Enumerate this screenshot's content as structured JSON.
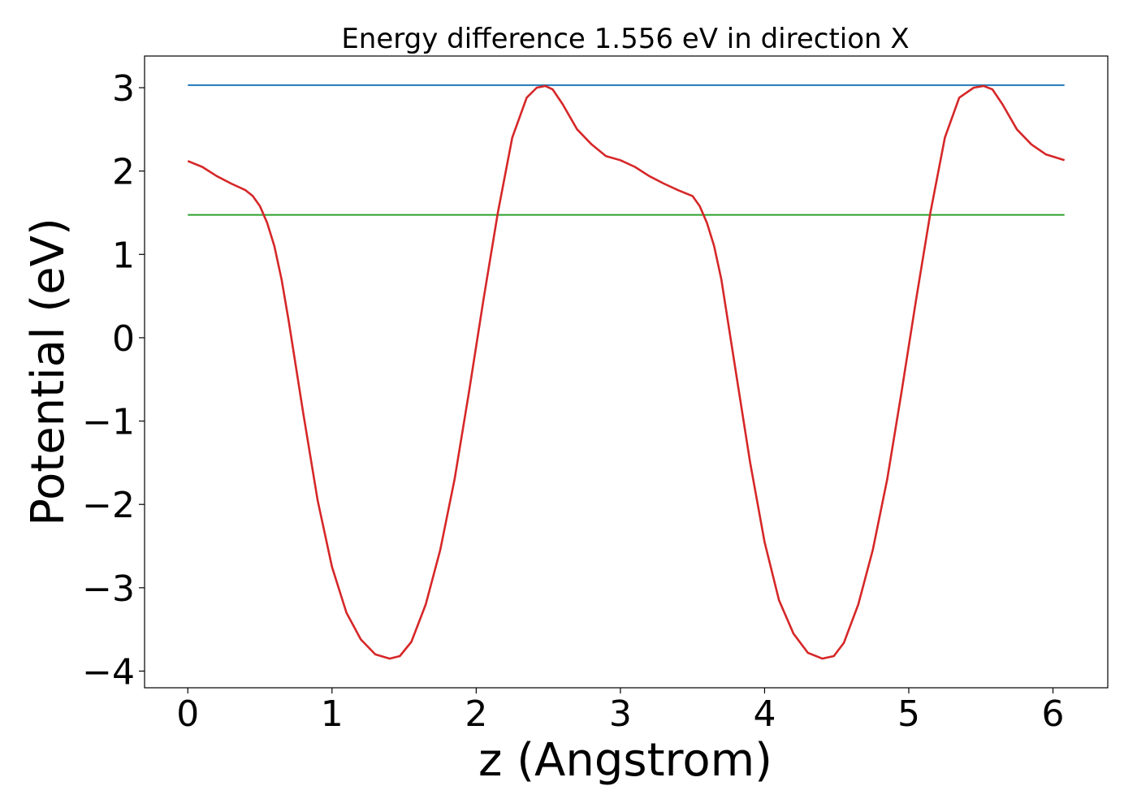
{
  "chart_data": {
    "type": "line",
    "title": "Energy difference 1.556 eV in direction X",
    "xlabel": "z (Angstrom)",
    "ylabel": "Potential (eV)",
    "xlim": [
      -0.3,
      6.38
    ],
    "ylim": [
      -4.2,
      3.38
    ],
    "xticks": [
      0,
      1,
      2,
      3,
      4,
      5,
      6
    ],
    "xtick_labels": [
      "0",
      "1",
      "2",
      "3",
      "4",
      "5",
      "6"
    ],
    "yticks": [
      -4,
      -3,
      -2,
      -1,
      0,
      1,
      2,
      3
    ],
    "ytick_labels": [
      "−4",
      "−3",
      "−2",
      "−1",
      "0",
      "1",
      "2",
      "3"
    ],
    "grid": false,
    "legend": "none",
    "series": [
      {
        "color": "#d62728",
        "x": [
          0,
          0.1,
          0.2,
          0.3,
          0.4,
          0.45,
          0.5,
          0.55,
          0.6,
          0.65,
          0.7,
          0.8,
          0.9,
          1.0,
          1.1,
          1.2,
          1.3,
          1.4,
          1.47,
          1.55,
          1.65,
          1.75,
          1.85,
          1.95,
          2.05,
          2.15,
          2.25,
          2.35,
          2.42,
          2.48,
          2.53,
          2.6,
          2.7,
          2.8,
          2.9,
          3.0,
          3.1,
          3.2,
          3.3,
          3.4,
          3.5,
          3.55,
          3.6,
          3.65,
          3.7,
          3.8,
          3.9,
          4.0,
          4.1,
          4.2,
          4.3,
          4.4,
          4.48,
          4.55,
          4.65,
          4.75,
          4.85,
          4.95,
          5.05,
          5.15,
          5.25,
          5.35,
          5.45,
          5.52,
          5.58,
          5.65,
          5.75,
          5.85,
          5.95,
          6.08
        ],
        "y": [
          2.12,
          2.05,
          1.94,
          1.85,
          1.77,
          1.7,
          1.58,
          1.38,
          1.1,
          0.7,
          0.2,
          -0.9,
          -1.95,
          -2.75,
          -3.3,
          -3.62,
          -3.8,
          -3.85,
          -3.82,
          -3.65,
          -3.2,
          -2.55,
          -1.7,
          -0.65,
          0.45,
          1.5,
          2.4,
          2.88,
          3.0,
          3.02,
          2.98,
          2.8,
          2.5,
          2.32,
          2.18,
          2.13,
          2.05,
          1.94,
          1.85,
          1.77,
          1.7,
          1.58,
          1.38,
          1.1,
          0.7,
          -0.4,
          -1.5,
          -2.45,
          -3.15,
          -3.55,
          -3.78,
          -3.85,
          -3.82,
          -3.66,
          -3.2,
          -2.55,
          -1.7,
          -0.65,
          0.45,
          1.5,
          2.4,
          2.88,
          3.0,
          3.02,
          2.98,
          2.8,
          2.5,
          2.32,
          2.2,
          2.13
        ]
      },
      {
        "color": "#1f77b4",
        "x": [
          0,
          6.08
        ],
        "y": [
          3.03,
          3.03
        ]
      },
      {
        "color": "#2ca02c",
        "x": [
          0,
          6.08
        ],
        "y": [
          1.474,
          1.474
        ]
      }
    ]
  }
}
